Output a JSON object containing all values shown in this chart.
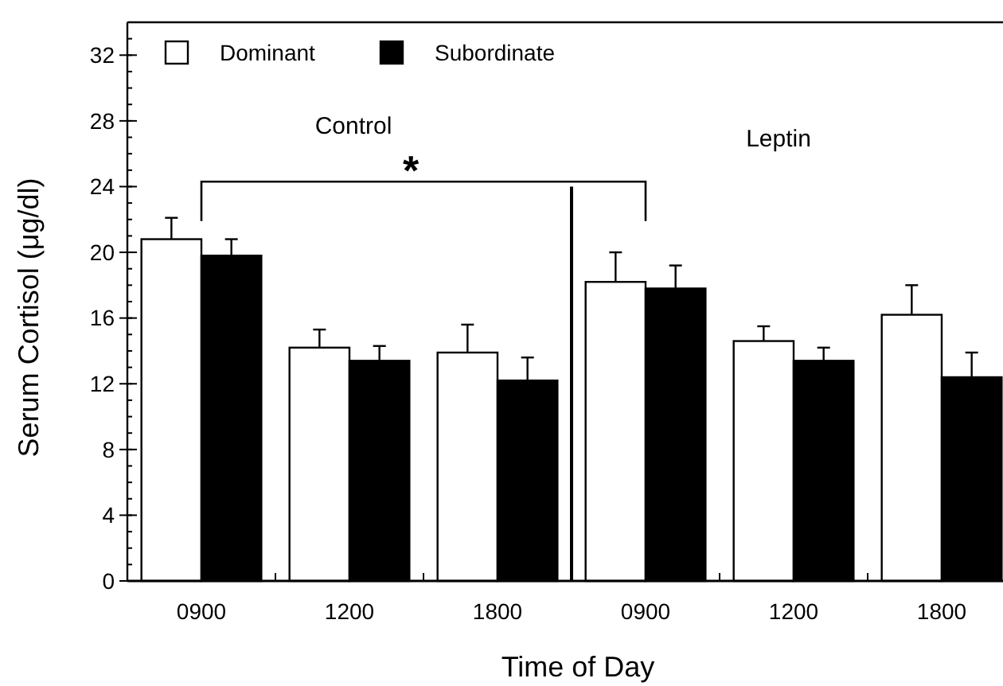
{
  "chart_data": {
    "type": "bar",
    "xlabel": "Time of Day",
    "ylabel": "Serum Cortisol (μg/dl)",
    "categories": [
      "0900",
      "1200",
      "1800",
      "0900",
      "1200",
      "1800"
    ],
    "series": [
      {
        "name": "Dominant",
        "color": "#ffffff",
        "values": [
          20.8,
          14.2,
          13.9,
          18.2,
          14.6,
          16.2
        ],
        "errors": [
          [
            20.8,
            22.1
          ],
          [
            14.2,
            15.3
          ],
          [
            13.9,
            15.6
          ],
          [
            18.2,
            20.0
          ],
          [
            14.6,
            15.5
          ],
          [
            16.2,
            18.0
          ]
        ]
      },
      {
        "name": "Subordinate",
        "color": "#000000",
        "values": [
          19.8,
          13.4,
          12.2,
          17.8,
          13.4,
          12.4
        ],
        "errors": [
          [
            19.8,
            20.8
          ],
          [
            13.4,
            14.3
          ],
          [
            12.2,
            13.6
          ],
          [
            17.8,
            19.2
          ],
          [
            13.4,
            14.2
          ],
          [
            12.4,
            13.9
          ]
        ]
      }
    ],
    "ylim": [
      0,
      34
    ],
    "yticks": [
      0,
      4,
      8,
      12,
      16,
      20,
      24,
      28,
      32
    ],
    "annotations": [
      "Control",
      "Leptin",
      "*"
    ],
    "legend": "top left",
    "grid": false
  }
}
